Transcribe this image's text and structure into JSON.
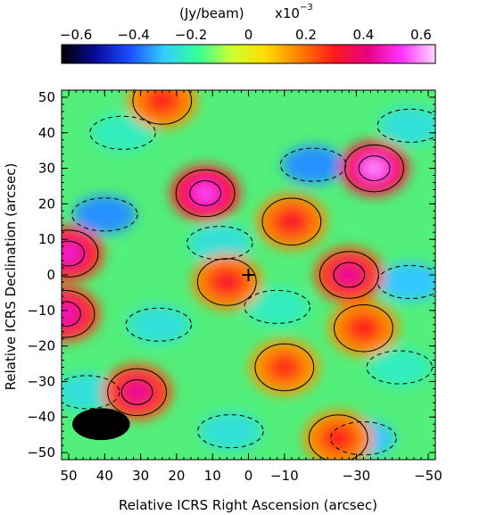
{
  "colorbar": {
    "title": "(Jy/beam)",
    "exponent_base": "x10",
    "exponent_power": "−3",
    "ticks": [
      "−0.6",
      "−0.4",
      "−0.2",
      "0",
      "0.2",
      "0.4",
      "0.6"
    ],
    "colors": [
      "#000000",
      "#0a0a9a",
      "#1a4dff",
      "#33ccff",
      "#33ff99",
      "#ccff33",
      "#ffdd00",
      "#ff7f00",
      "#ff1a1a",
      "#e6007f",
      "#ff33ff",
      "#ffd6ff"
    ]
  },
  "chart_data": {
    "type": "heatmap",
    "title": "",
    "xlabel": "Relative ICRS Right Ascension (arcsec)",
    "ylabel": "Relative ICRS Declination (arcsec)",
    "x_ticks": [
      "50",
      "40",
      "30",
      "20",
      "10",
      "0",
      "−10",
      "−30",
      "−50"
    ],
    "x_tick_values": [
      50,
      40,
      30,
      20,
      10,
      0,
      -10,
      -30,
      -50
    ],
    "y_ticks": [
      "50",
      "40",
      "30",
      "20",
      "10",
      "0",
      "−10",
      "−20",
      "−30",
      "−40",
      "−50"
    ],
    "y_tick_values": [
      50,
      40,
      30,
      20,
      10,
      0,
      -10,
      -20,
      -30,
      -40,
      -50
    ],
    "xlim": [
      52,
      -52
    ],
    "ylim": [
      -52,
      52
    ],
    "colorbar_range": [
      -0.65,
      0.65
    ],
    "colorbar_unit": "Jy/beam x 1e-3",
    "beam": {
      "ra": 41,
      "dec": -42,
      "major_arcsec": 16,
      "minor_arcsec": 9,
      "pa_deg": 90
    },
    "phase_center": {
      "ra": 0,
      "dec": 0
    },
    "sources": [
      {
        "ra": 12,
        "dec": 23,
        "peak": 0.55
      },
      {
        "ra": -35,
        "dec": 30,
        "peak": 0.6
      },
      {
        "ra": 50,
        "dec": 6,
        "peak": 0.5
      },
      {
        "ra": 51,
        "dec": -11,
        "peak": 0.48
      },
      {
        "ra": 31,
        "dec": -33,
        "peak": 0.45
      },
      {
        "ra": -28,
        "dec": 0,
        "peak": 0.45
      },
      {
        "ra": 6,
        "dec": -2,
        "peak": 0.32
      },
      {
        "ra": -12,
        "dec": 15,
        "peak": 0.32
      },
      {
        "ra": -32,
        "dec": -15,
        "peak": 0.3
      },
      {
        "ra": -10,
        "dec": -26,
        "peak": 0.28
      },
      {
        "ra": 24,
        "dec": 49,
        "peak": 0.3
      },
      {
        "ra": -25,
        "dec": -46,
        "peak": 0.3
      }
    ],
    "negative_regions": [
      {
        "ra": -18,
        "dec": 31,
        "value": -0.35
      },
      {
        "ra": 40,
        "dec": 17,
        "value": -0.35
      },
      {
        "ra": 8,
        "dec": 9,
        "value": -0.25
      },
      {
        "ra": -32,
        "dec": -46,
        "value": -0.3
      },
      {
        "ra": 25,
        "dec": -14,
        "value": -0.25
      },
      {
        "ra": -45,
        "dec": -2,
        "value": -0.3
      },
      {
        "ra": 35,
        "dec": 40,
        "value": -0.22
      },
      {
        "ra": -45,
        "dec": 42,
        "value": -0.25
      },
      {
        "ra": -42,
        "dec": -26,
        "value": -0.22
      },
      {
        "ra": 5,
        "dec": -44,
        "value": -0.25
      },
      {
        "ra": -8,
        "dec": -9,
        "value": -0.22
      },
      {
        "ra": 45,
        "dec": -33,
        "value": -0.25
      }
    ]
  }
}
